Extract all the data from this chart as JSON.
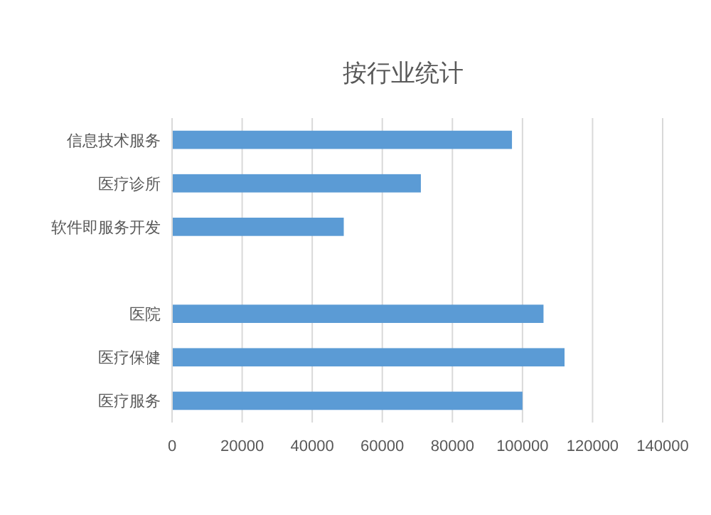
{
  "chart_data": {
    "type": "bar",
    "orientation": "horizontal",
    "title": "按行业统计",
    "categories": [
      "信息技术服务",
      "医疗诊所",
      "软件即服务开发",
      null,
      "医院",
      "医疗保健",
      "医疗服务"
    ],
    "values": [
      97000,
      71000,
      49000,
      null,
      106000,
      112000,
      100000
    ],
    "color": "#5b9bd5",
    "xlim": [
      0,
      140000
    ],
    "xticks": [
      0,
      20000,
      40000,
      60000,
      80000,
      100000,
      120000,
      140000
    ],
    "grid": "x"
  }
}
